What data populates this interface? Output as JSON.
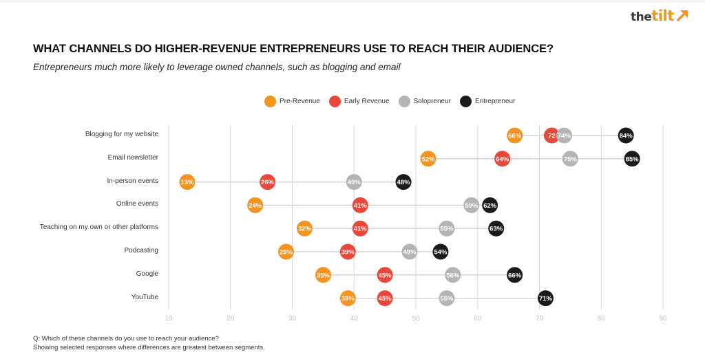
{
  "logo": {
    "the": "the",
    "tilt": "tilt",
    "icon": "arrow-up-right-icon",
    "color": "#f39322"
  },
  "header": {
    "title": "WHAT CHANNELS DO HIGHER-REVENUE ENTREPRENEURS USE TO REACH THEIR AUDIENCE?",
    "subtitle": "Entrepreneurs much more likely to leverage owned channels, such as blogging and email"
  },
  "footnote": {
    "line1": "Q: Which of these channels do you use to reach your audience?",
    "line2": "Showing selected responses where differences are greatest between segments."
  },
  "chart_data": {
    "type": "scatter",
    "subtype": "dot-plot",
    "title": "WHAT CHANNELS DO HIGHER-REVENUE ENTREPRENEURS USE TO REACH THEIR AUDIENCE?",
    "subtitle": "Entrepreneurs much more likely to leverage owned channels, such as blogging and email",
    "xlabel": "",
    "ylabel": "",
    "xlim": [
      10,
      90
    ],
    "xticks": [
      10,
      20,
      30,
      40,
      50,
      60,
      70,
      80,
      90
    ],
    "grid": true,
    "legend_position": "top-center",
    "categories": [
      "Blogging for my website",
      "Email newsletter",
      "In-person events",
      "Online events",
      "Teaching on my own or other platforms",
      "Podcasting",
      "Google",
      "YouTube"
    ],
    "series": [
      {
        "name": "Pre-Revenue",
        "color": "#f39322",
        "values": [
          66,
          52,
          13,
          24,
          32,
          29,
          35,
          39
        ],
        "labels": [
          "66%",
          "52%",
          "13%",
          "24%",
          "32%",
          "29%",
          "35%",
          "39%"
        ]
      },
      {
        "name": "Early Revenue",
        "color": "#e8483a",
        "values": [
          72,
          64,
          26,
          41,
          41,
          39,
          45,
          45
        ],
        "labels": [
          "72",
          "64%",
          "26%",
          "41%",
          "41%",
          "39%",
          "45%",
          "45%"
        ]
      },
      {
        "name": "Solopreneur",
        "color": "#b4b4b4",
        "values": [
          74,
          75,
          40,
          59,
          55,
          49,
          56,
          55
        ],
        "labels": [
          "74%",
          "75%",
          "40%",
          "59%",
          "55%",
          "49%",
          "56%",
          "55%"
        ]
      },
      {
        "name": "Entrepreneur",
        "color": "#1d1a1a",
        "values": [
          84,
          85,
          48,
          62,
          63,
          54,
          66,
          71
        ],
        "labels": [
          "84%",
          "85%",
          "48%",
          "62%",
          "63%",
          "54%",
          "66%",
          "71%"
        ]
      }
    ]
  }
}
